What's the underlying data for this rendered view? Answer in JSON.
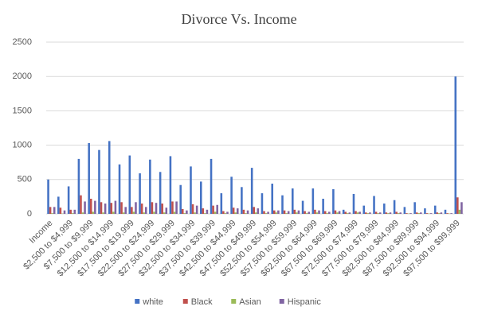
{
  "chart_data": {
    "type": "bar",
    "title": "Divorce Vs. Income",
    "categories": [
      "Income",
      null,
      "$2,500 to $4,999",
      null,
      "$7,500 to $9,999",
      null,
      "$12,500 to $14,999",
      null,
      "$17,500 to $19,999",
      null,
      "$22,500 to $24,999",
      null,
      "$27,500 to $29,999",
      null,
      "$32,500 to $34,999",
      null,
      "$37,500 to $39,999",
      null,
      "$42,500 to $44,999",
      null,
      "$47,500 to $49,999",
      null,
      "$52,500 to $54,999",
      null,
      "$57,500 to $59,999",
      null,
      "$62,500 to $64,999",
      null,
      "$67,500 to $69,999",
      null,
      "$72,500 to $74,999",
      null,
      "$77,500 to $79,999",
      null,
      "$82,500 to $84,999",
      null,
      "$87,500 to $89,999",
      null,
      "$92,500 to $94,999",
      null,
      "$97,500 to $99,999"
    ],
    "series": [
      {
        "name": "white",
        "color": "#4472c4",
        "values": [
          500,
          250,
          400,
          800,
          1030,
          930,
          1060,
          720,
          850,
          590,
          790,
          610,
          840,
          420,
          690,
          470,
          800,
          300,
          540,
          390,
          670,
          300,
          440,
          270,
          370,
          190,
          370,
          220,
          360,
          60,
          290,
          120,
          260,
          150,
          200,
          100,
          170,
          80,
          120,
          60,
          2000
        ]
      },
      {
        "name": "Black",
        "color": "#c0504d",
        "values": [
          100,
          90,
          60,
          270,
          220,
          170,
          160,
          170,
          100,
          150,
          170,
          150,
          180,
          70,
          140,
          80,
          120,
          40,
          90,
          60,
          100,
          40,
          50,
          50,
          60,
          40,
          60,
          40,
          50,
          30,
          40,
          20,
          30,
          20,
          30,
          10,
          20,
          10,
          20,
          10,
          240
        ]
      },
      {
        "name": "Asian",
        "color": "#9bbb59",
        "values": [
          10,
          5,
          10,
          20,
          30,
          20,
          30,
          20,
          30,
          20,
          30,
          20,
          30,
          10,
          20,
          10,
          30,
          10,
          20,
          10,
          20,
          10,
          20,
          10,
          20,
          10,
          20,
          10,
          20,
          10,
          20,
          10,
          10,
          10,
          10,
          5,
          10,
          5,
          10,
          5,
          60
        ]
      },
      {
        "name": "Hispanic",
        "color": "#8064a2",
        "values": [
          100,
          50,
          60,
          180,
          190,
          150,
          190,
          100,
          170,
          100,
          160,
          90,
          180,
          50,
          120,
          60,
          130,
          30,
          80,
          50,
          80,
          30,
          50,
          40,
          50,
          30,
          50,
          30,
          40,
          20,
          30,
          20,
          20,
          20,
          20,
          10,
          20,
          10,
          20,
          10,
          170
        ]
      }
    ],
    "ylim": [
      0,
      2500
    ],
    "yticks": [
      0,
      500,
      1000,
      1500,
      2000,
      2500
    ],
    "grid": true,
    "legend": "bottom"
  }
}
